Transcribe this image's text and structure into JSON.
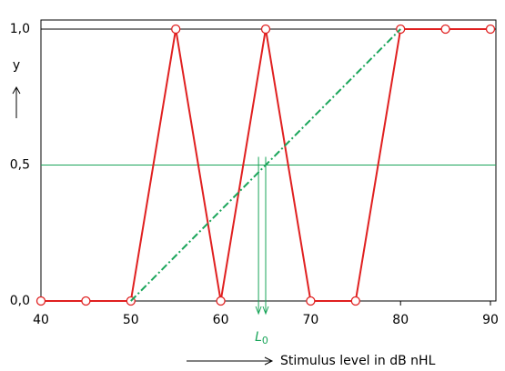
{
  "chart_data": {
    "type": "line",
    "x_label": "Stimulus level in dB nHL",
    "y_label": "y",
    "xlim": [
      40,
      90
    ],
    "xticks": [
      40,
      50,
      60,
      70,
      80,
      90
    ],
    "ylim": [
      0,
      1
    ],
    "yticks": [
      {
        "value": 0,
        "label": "0,0"
      },
      {
        "value": 0.5,
        "label": "0,5"
      },
      {
        "value": 1,
        "label": "1,0"
      }
    ],
    "ytick_colors": [
      "#000000",
      "#1aa55a",
      "#000000"
    ],
    "reference_lines": [
      {
        "y": 0.5,
        "color": "#1aa55a"
      },
      {
        "y": 1,
        "color": "#000000"
      }
    ],
    "series": [
      {
        "color": "#e02020",
        "style": "solid",
        "markers": true,
        "x": [
          40,
          45,
          50,
          55,
          60,
          65,
          70,
          75,
          80,
          85,
          90
        ],
        "values": [
          0,
          0,
          0,
          1,
          0,
          1,
          0,
          0,
          1,
          1,
          1
        ]
      },
      {
        "color": "#1aa55a",
        "style": "dashdot",
        "markers": false,
        "x": [
          50,
          80
        ],
        "values": [
          0,
          1
        ]
      }
    ],
    "threshold_arrows": [
      64.2,
      65
    ],
    "threshold_color": "#1aa55a",
    "threshold_label": {
      "main": "L",
      "sub": "0"
    }
  }
}
